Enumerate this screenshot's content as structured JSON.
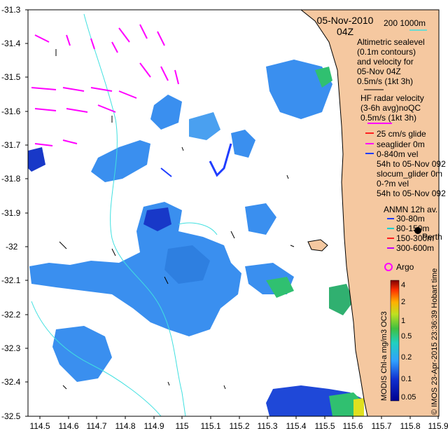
{
  "title": {
    "date": "05-Nov-2010",
    "time": "04Z"
  },
  "bathymetry_legend": {
    "isobaths": "200   1000m"
  },
  "legend": {
    "altimetry": [
      "Altimetric sealevel",
      "(0.1m contours)",
      "and velocity for",
      "05-Nov 04Z",
      "0.5m/s (1kt 3h)"
    ],
    "hf_radar": [
      "HF radar velocity",
      "(3-6h avg)noQC",
      "0.5m/s (1kt 3h)"
    ],
    "glider_vel": "25 cm/s glide",
    "seaglider": [
      "seaglider 0m",
      "0-840m vel",
      "54h to 05-Nov 092"
    ],
    "slocum": [
      "slocum_glider 0m",
      "0-?m vel",
      "54h to 05-Nov 092"
    ],
    "anmn_title": "ANMN 12h av.",
    "anmn_items": [
      {
        "label": "30-80m",
        "color": "#1f3dff"
      },
      {
        "label": "80-150m",
        "color": "#00d0d0"
      },
      {
        "label": "150-300m",
        "color": "#ff2020"
      },
      {
        "label": "300-600m",
        "color": "#c000ff"
      }
    ],
    "argo": "Argo",
    "city": "Perth"
  },
  "colorbar": {
    "ticks": [
      "4",
      "2",
      "1",
      "0.5",
      "0.2",
      "0.1",
      "0.05"
    ],
    "label": "MODIS Chl-a mg/m3 OC3"
  },
  "credit": "© IMOS 23-Apr-2015 23:36:39 Hobart time",
  "axes": {
    "x_ticks": [
      "114.5",
      "114.6",
      "114.7",
      "114.8",
      "114.9",
      "115",
      "115.1",
      "115.2",
      "115.3",
      "115.4",
      "115.5",
      "115.6",
      "115.7",
      "115.8",
      "115.9"
    ],
    "y_ticks": [
      "-31.3",
      "-31.4",
      "-31.5",
      "-31.6",
      "-31.7",
      "-31.8",
      "-31.9",
      "-32",
      "-32.1",
      "-32.2",
      "-32.3",
      "-32.4",
      "-32.5"
    ]
  },
  "colors": {
    "land": "#f5c8a0",
    "hf_arrow": "#ff00ff",
    "isobath": "#40e0e0"
  }
}
